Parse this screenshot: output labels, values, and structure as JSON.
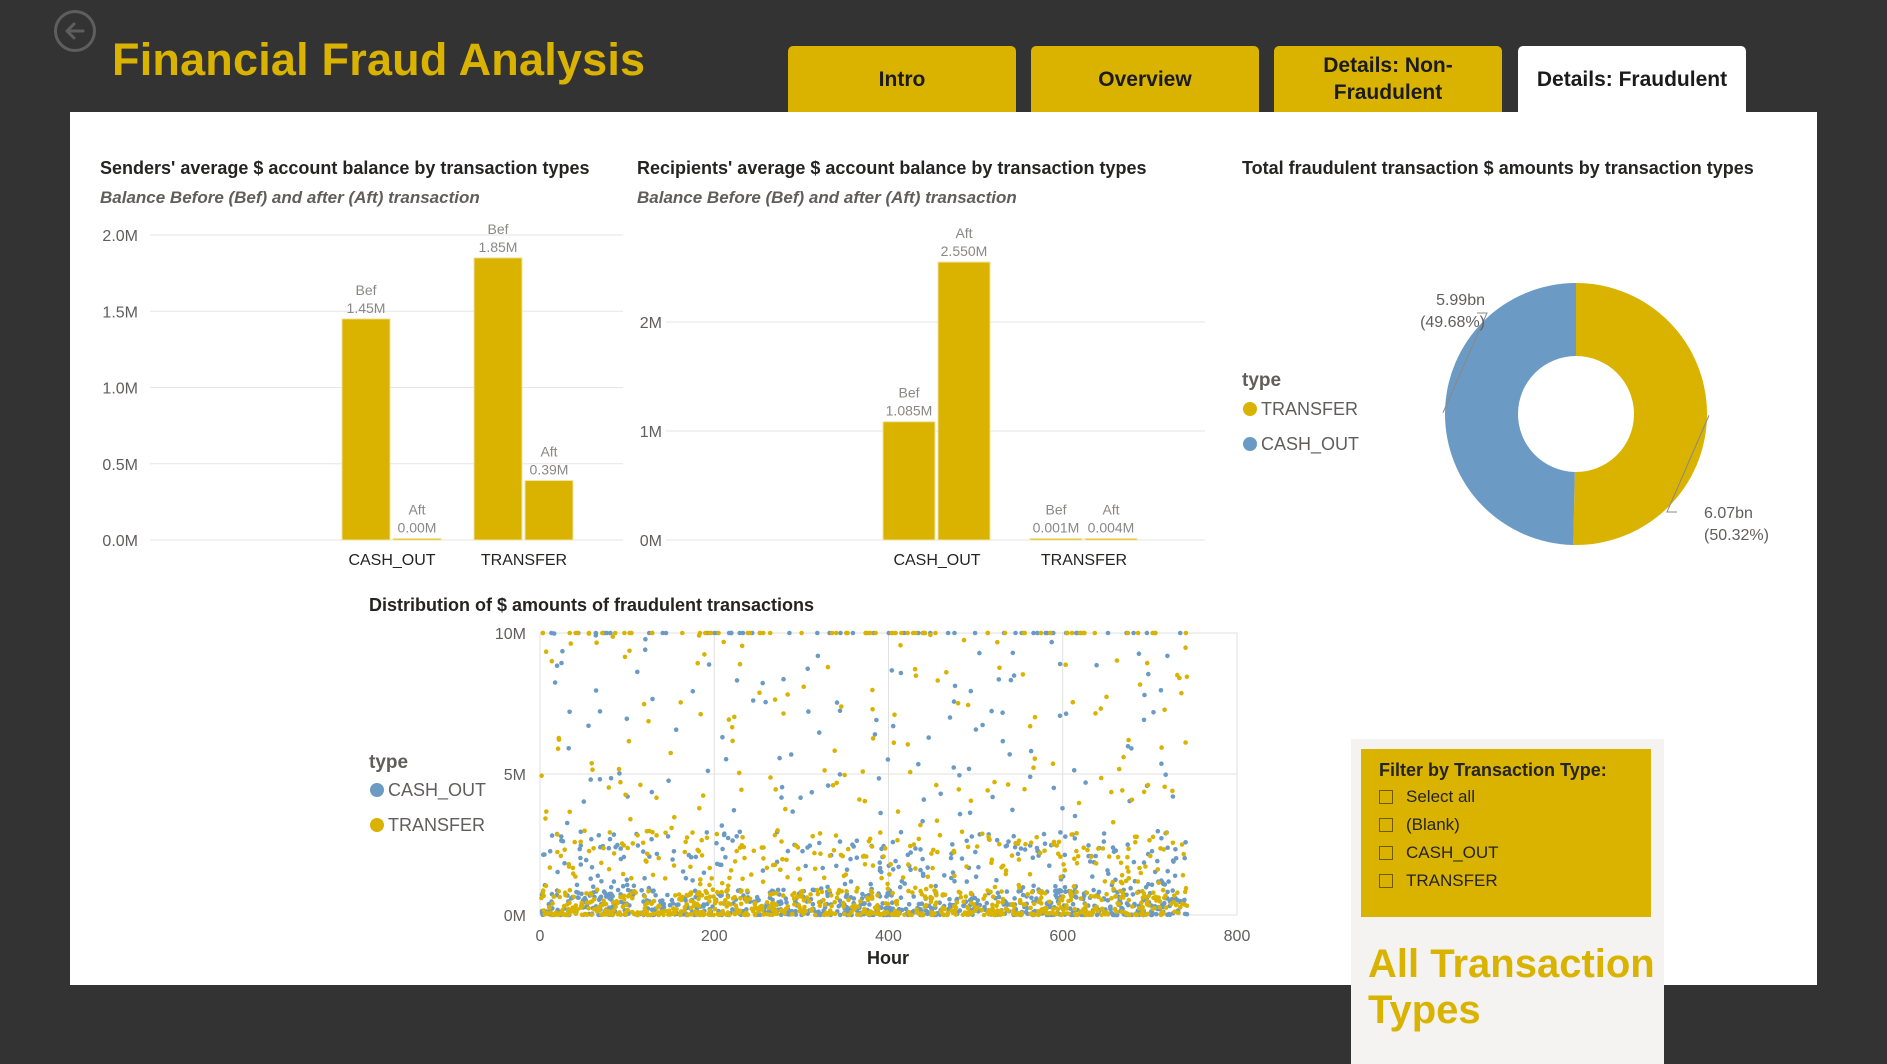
{
  "header": {
    "title": "Financial Fraud Analysis",
    "tabs": [
      {
        "label": "Intro",
        "active": false
      },
      {
        "label": "Overview",
        "active": false
      },
      {
        "label": "Details: Non-Fraudulent",
        "active": false
      },
      {
        "label": "Details: Fraudulent",
        "active": true
      }
    ]
  },
  "colors": {
    "accent": "#d9b300",
    "blue": "#6b9ac4",
    "background": "#333333"
  },
  "filter": {
    "title": "Filter by Transaction Type:",
    "options": [
      "Select all",
      "(Blank)",
      "CASH_OUT",
      "TRANSFER"
    ],
    "selection_label": "All Transaction Types"
  },
  "chart_data": [
    {
      "type": "bar",
      "title": "Senders' average $ account balance by transaction types",
      "subtitle": "Balance Before (Bef) and after (Aft) transaction",
      "categories": [
        "CASH_OUT",
        "TRANSFER"
      ],
      "series": [
        {
          "values": [
            1450000,
            1850000
          ],
          "labels": [
            "Bef 1.45M",
            "Bef 1.85M"
          ]
        },
        {
          "values": [
            0,
            390000
          ],
          "labels": [
            "Aft 0.00M",
            "Aft 0.39M"
          ]
        }
      ],
      "yticks": [
        "0.0M",
        "0.5M",
        "1.0M",
        "1.5M",
        "2.0M"
      ],
      "ylim": [
        0,
        2000000
      ]
    },
    {
      "type": "bar",
      "title": "Recipients' average $ account balance by transaction types",
      "subtitle": "Balance Before (Bef) and after (Aft) transaction",
      "categories": [
        "CASH_OUT",
        "TRANSFER"
      ],
      "series": [
        {
          "values": [
            1085000,
            1000
          ],
          "labels": [
            "Bef 1.085M",
            "Bef 0.001M"
          ]
        },
        {
          "values": [
            2550000,
            4000
          ],
          "labels": [
            "Aft 2.550M",
            "Aft 0.004M"
          ]
        }
      ],
      "yticks": [
        "0M",
        "1M",
        "2M"
      ],
      "ylim": [
        0,
        2800000
      ]
    },
    {
      "type": "pie",
      "title": "Total fraudulent transaction $ amounts by transaction types",
      "legend_title": "type",
      "slices": [
        {
          "name": "TRANSFER",
          "value": 6.07,
          "label": "6.07bn",
          "pct": "(50.32%)",
          "color": "#d9b300"
        },
        {
          "name": "CASH_OUT",
          "value": 5.99,
          "label": "5.99bn",
          "pct": "(49.68%)",
          "color": "#6b9ac4"
        }
      ]
    },
    {
      "type": "scatter",
      "title": "Distribution of $ amounts of fraudulent transactions",
      "xlabel": "Hour",
      "xticks": [
        "0",
        "200",
        "400",
        "600",
        "800"
      ],
      "yticks": [
        "0M",
        "5M",
        "10M"
      ],
      "xlim": [
        0,
        800
      ],
      "ylim": [
        0,
        10000000
      ],
      "legend_title": "type",
      "series": [
        {
          "name": "CASH_OUT",
          "color": "#6b9ac4"
        },
        {
          "name": "TRANSFER",
          "color": "#d9b300"
        }
      ],
      "x_range": [
        1,
        743
      ],
      "points_per_series": 1100
    }
  ]
}
